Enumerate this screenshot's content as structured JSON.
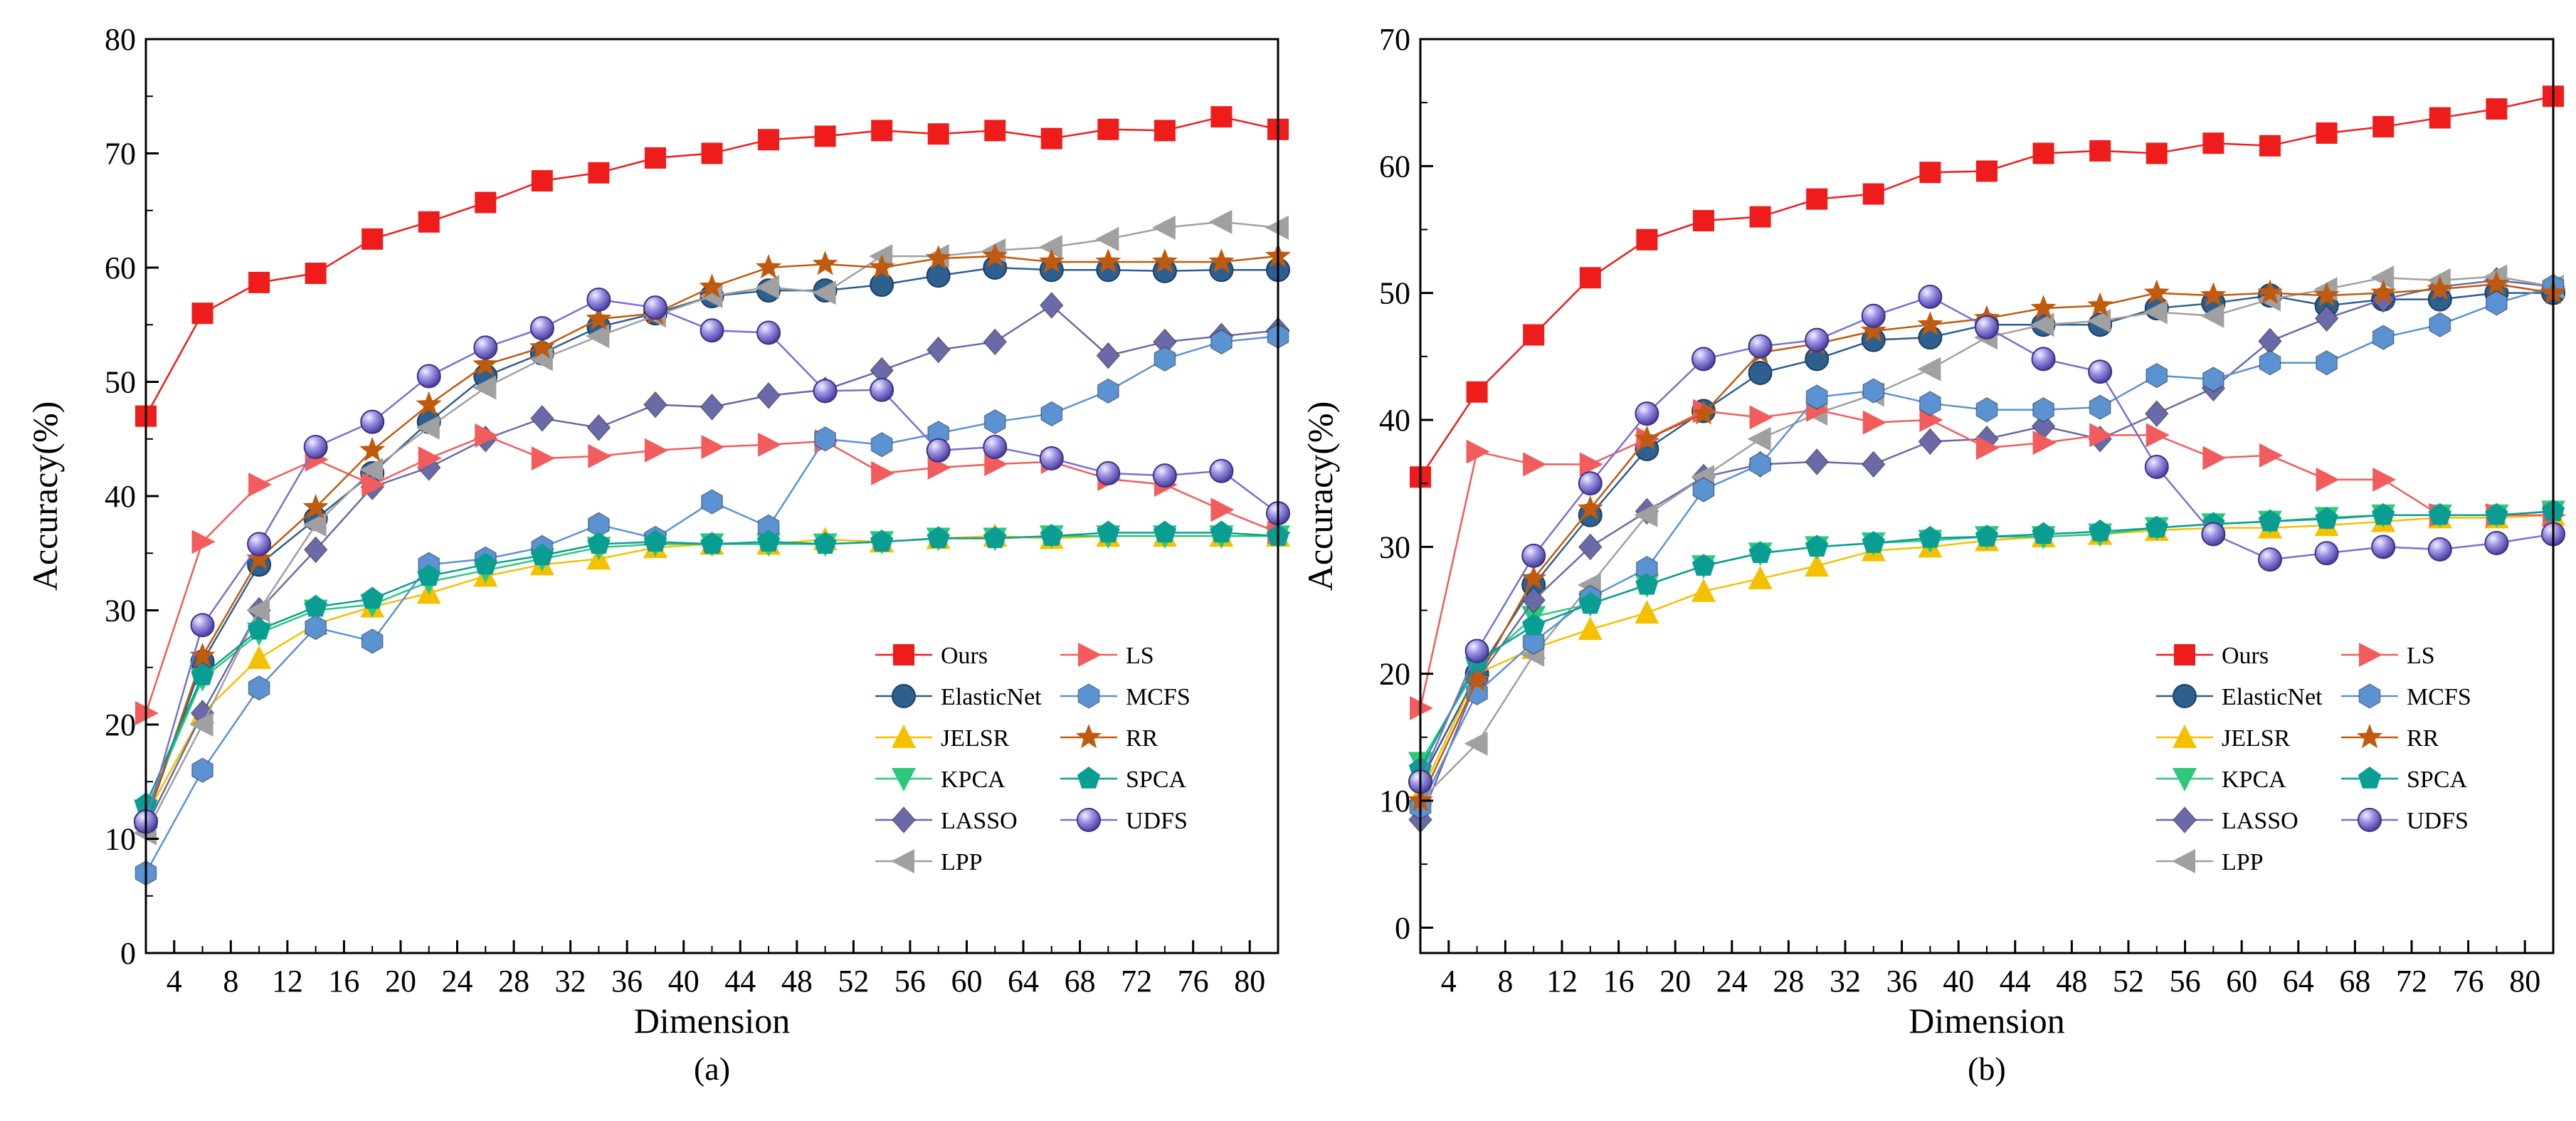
{
  "chart_data": [
    {
      "type": "line",
      "panel_label": "(a)",
      "xlabel": "Dimension",
      "ylabel": "Accuracy(%)",
      "xlim": [
        2,
        82
      ],
      "ylim": [
        0,
        80
      ],
      "x_tick_labels": [
        4,
        8,
        12,
        16,
        20,
        24,
        28,
        32,
        36,
        40,
        44,
        48,
        52,
        56,
        60,
        64,
        68,
        72,
        76,
        80
      ],
      "y_tick_labels": [
        0,
        10,
        20,
        30,
        40,
        50,
        60,
        70,
        80
      ],
      "legend_position": "bottom-right",
      "x": [
        2,
        6,
        10,
        14,
        18,
        22,
        26,
        30,
        34,
        38,
        42,
        46,
        50,
        54,
        58,
        62,
        66,
        70,
        74,
        78,
        82
      ],
      "series": [
        {
          "name": "Ours",
          "color": "#ef1c1c",
          "marker": "square",
          "values": [
            47.0,
            56.0,
            58.7,
            59.5,
            62.5,
            64.0,
            65.7,
            67.6,
            68.3,
            69.6,
            70.0,
            71.2,
            71.5,
            72.0,
            71.7,
            72.0,
            71.3,
            72.1,
            72.0,
            73.2,
            72.1
          ]
        },
        {
          "name": "ElasticNet",
          "color": "#2d5f8f",
          "marker": "circle",
          "values": [
            11.5,
            25.5,
            34.0,
            38.0,
            42.0,
            46.5,
            50.5,
            52.5,
            54.8,
            56.0,
            57.5,
            58.0,
            58.0,
            58.5,
            59.3,
            60.0,
            59.8,
            59.8,
            59.7,
            59.8,
            59.8
          ]
        },
        {
          "name": "JELSR",
          "color": "#f5c000",
          "marker": "triangle-up",
          "values": [
            12.0,
            21.0,
            25.8,
            28.8,
            30.3,
            31.5,
            33.0,
            34.0,
            34.5,
            35.5,
            35.8,
            35.8,
            36.2,
            36.0,
            36.3,
            36.5,
            36.3,
            36.5,
            36.5,
            36.5,
            36.5
          ]
        },
        {
          "name": "KPCA",
          "color": "#2cc97a",
          "marker": "triangle-down",
          "values": [
            12.5,
            24.0,
            28.0,
            30.0,
            30.5,
            32.5,
            33.5,
            34.5,
            35.5,
            35.8,
            35.8,
            35.8,
            35.8,
            36.0,
            36.3,
            36.3,
            36.5,
            36.5,
            36.5,
            36.5,
            36.5
          ]
        },
        {
          "name": "LASSO",
          "color": "#6a6aa8",
          "marker": "diamond",
          "values": [
            11.0,
            21.0,
            30.0,
            35.3,
            40.8,
            42.5,
            45.0,
            46.8,
            46.0,
            48.0,
            47.8,
            48.8,
            49.3,
            51.0,
            52.8,
            53.5,
            56.7,
            52.3,
            53.5,
            54.0,
            54.5
          ]
        },
        {
          "name": "LPP",
          "color": "#a0a0a0",
          "marker": "triangle-left",
          "values": [
            10.5,
            20.0,
            30.0,
            37.5,
            42.3,
            46.0,
            49.5,
            52.0,
            54.0,
            55.8,
            57.5,
            58.3,
            57.8,
            61.0,
            61.0,
            61.5,
            61.8,
            62.5,
            63.5,
            64.0,
            63.5
          ]
        },
        {
          "name": "LS",
          "color": "#f25c5c",
          "marker": "triangle-right",
          "values": [
            21.0,
            36.0,
            41.0,
            43.2,
            41.0,
            43.3,
            45.3,
            43.3,
            43.5,
            44.0,
            44.3,
            44.5,
            44.8,
            42.0,
            42.5,
            42.8,
            43.0,
            41.5,
            41.0,
            38.8,
            36.8
          ]
        },
        {
          "name": "MCFS",
          "color": "#5b92d2",
          "marker": "hexagon",
          "values": [
            7.0,
            16.0,
            23.2,
            28.5,
            27.3,
            34.0,
            34.5,
            35.5,
            37.5,
            36.3,
            39.5,
            37.3,
            45.0,
            44.5,
            45.5,
            46.5,
            47.2,
            49.2,
            52.0,
            53.5,
            54.0
          ]
        },
        {
          "name": "RR",
          "color": "#bf5a0e",
          "marker": "star",
          "values": [
            11.5,
            26.0,
            34.5,
            39.0,
            44.0,
            48.0,
            51.5,
            53.0,
            55.5,
            56.0,
            58.3,
            60.0,
            60.3,
            60.0,
            60.8,
            61.0,
            60.5,
            60.5,
            60.5,
            60.5,
            61.0
          ]
        },
        {
          "name": "SPCA",
          "color": "#0a9e93",
          "marker": "pentagon",
          "values": [
            13.0,
            24.3,
            28.3,
            30.3,
            31.0,
            33.0,
            34.0,
            34.8,
            35.8,
            36.0,
            35.8,
            36.0,
            35.8,
            36.0,
            36.3,
            36.3,
            36.5,
            36.8,
            36.8,
            36.8,
            36.5
          ]
        },
        {
          "name": "UDFS",
          "color": "#7b6fd0",
          "marker": "sphere",
          "values": [
            11.5,
            28.7,
            35.8,
            44.3,
            46.5,
            50.5,
            53.0,
            54.7,
            57.2,
            56.5,
            54.5,
            54.3,
            49.2,
            49.3,
            44.0,
            44.3,
            43.3,
            42.0,
            41.8,
            42.2,
            38.5
          ]
        }
      ]
    },
    {
      "type": "line",
      "panel_label": "(b)",
      "xlabel": "Dimension",
      "ylabel": "Accuracy(%)",
      "xlim": [
        2,
        82
      ],
      "ylim": [
        -2,
        70
      ],
      "x_tick_labels": [
        4,
        8,
        12,
        16,
        20,
        24,
        28,
        32,
        36,
        40,
        44,
        48,
        52,
        56,
        60,
        64,
        68,
        72,
        76,
        80
      ],
      "y_tick_labels": [
        0,
        10,
        20,
        30,
        40,
        50,
        60,
        70
      ],
      "legend_position": "bottom-right",
      "x": [
        2,
        6,
        10,
        14,
        18,
        22,
        26,
        30,
        34,
        38,
        42,
        46,
        50,
        54,
        58,
        62,
        66,
        70,
        74,
        78,
        82
      ],
      "series": [
        {
          "name": "Ours",
          "color": "#ef1c1c",
          "marker": "square",
          "values": [
            35.5,
            42.2,
            46.7,
            51.2,
            54.2,
            55.7,
            56.0,
            57.4,
            57.8,
            59.5,
            59.6,
            61.0,
            61.2,
            61.0,
            61.8,
            61.6,
            62.6,
            63.1,
            63.8,
            64.5,
            65.5
          ]
        },
        {
          "name": "ElasticNet",
          "color": "#2d5f8f",
          "marker": "circle",
          "values": [
            11.5,
            20.0,
            27.0,
            32.5,
            37.7,
            40.7,
            43.7,
            44.8,
            46.3,
            46.5,
            47.5,
            47.5,
            47.5,
            48.8,
            49.2,
            49.8,
            49.0,
            49.5,
            49.5,
            50.0,
            50.0
          ]
        },
        {
          "name": "JELSR",
          "color": "#f5c000",
          "marker": "triangle-up",
          "values": [
            10.5,
            20.0,
            22.0,
            23.5,
            24.8,
            26.5,
            27.5,
            28.5,
            29.7,
            30.0,
            30.5,
            30.8,
            31.0,
            31.3,
            31.5,
            31.5,
            31.7,
            32.0,
            32.3,
            32.3,
            32.5
          ]
        },
        {
          "name": "KPCA",
          "color": "#2cc97a",
          "marker": "triangle-down",
          "values": [
            13.0,
            20.5,
            24.5,
            25.5,
            27.0,
            28.5,
            29.5,
            30.0,
            30.3,
            30.5,
            30.8,
            30.8,
            31.0,
            31.5,
            31.8,
            32.0,
            32.3,
            32.5,
            32.5,
            32.5,
            32.8
          ]
        },
        {
          "name": "LASSO",
          "color": "#6a6aa8",
          "marker": "diamond",
          "values": [
            8.5,
            19.5,
            25.8,
            30.0,
            32.8,
            35.5,
            36.5,
            36.7,
            36.5,
            38.3,
            38.5,
            39.5,
            38.5,
            40.5,
            42.5,
            46.2,
            48.0,
            49.5,
            50.5,
            51.0,
            50.5
          ]
        },
        {
          "name": "LPP",
          "color": "#a0a0a0",
          "marker": "triangle-left",
          "values": [
            10.0,
            14.5,
            21.5,
            27.0,
            32.5,
            35.5,
            38.5,
            40.5,
            42.0,
            44.0,
            46.5,
            47.5,
            47.8,
            48.5,
            48.2,
            49.5,
            50.3,
            51.2,
            51.0,
            51.3,
            50.5
          ]
        },
        {
          "name": "LS",
          "color": "#f25c5c",
          "marker": "triangle-right",
          "values": [
            17.3,
            37.5,
            36.5,
            36.5,
            38.5,
            40.7,
            40.2,
            40.8,
            39.8,
            40.0,
            37.8,
            38.2,
            38.8,
            38.8,
            37.0,
            37.2,
            35.3,
            35.3,
            32.5,
            32.5,
            32.5
          ]
        },
        {
          "name": "MCFS",
          "color": "#5b92d2",
          "marker": "hexagon",
          "values": [
            9.5,
            18.5,
            22.5,
            26.0,
            28.3,
            34.5,
            36.5,
            41.8,
            42.3,
            41.3,
            40.8,
            40.8,
            41.0,
            43.5,
            43.2,
            44.5,
            44.5,
            46.5,
            47.5,
            49.2,
            50.5
          ]
        },
        {
          "name": "RR",
          "color": "#bf5a0e",
          "marker": "star",
          "values": [
            10.0,
            19.5,
            27.5,
            33.0,
            38.5,
            40.5,
            45.3,
            46.0,
            47.0,
            47.5,
            48.0,
            48.8,
            49.0,
            50.0,
            49.8,
            50.0,
            49.8,
            50.0,
            50.3,
            50.7,
            50.0
          ]
        },
        {
          "name": "SPCA",
          "color": "#0a9e93",
          "marker": "pentagon",
          "values": [
            12.5,
            21.0,
            23.8,
            25.5,
            27.0,
            28.5,
            29.5,
            30.0,
            30.3,
            30.7,
            30.8,
            31.0,
            31.2,
            31.5,
            31.8,
            32.0,
            32.2,
            32.5,
            32.5,
            32.5,
            32.8
          ]
        },
        {
          "name": "UDFS",
          "color": "#7b6fd0",
          "marker": "sphere",
          "values": [
            11.5,
            21.8,
            29.3,
            35.0,
            40.5,
            44.8,
            45.8,
            46.3,
            48.2,
            49.7,
            47.3,
            44.8,
            43.8,
            36.3,
            31.0,
            29.0,
            29.5,
            30.0,
            29.8,
            30.3,
            31.0
          ]
        }
      ]
    }
  ]
}
